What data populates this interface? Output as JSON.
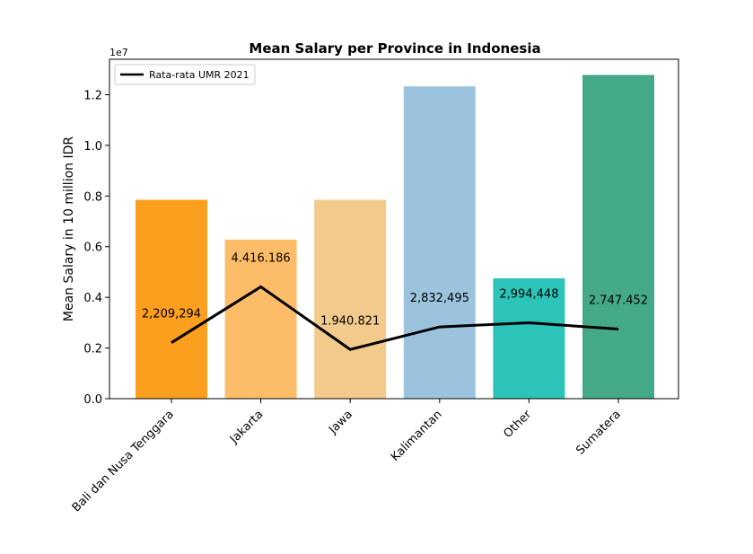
{
  "chart_data": {
    "type": "bar",
    "title": "Mean Salary per Province in Indonesia",
    "xlabel": "",
    "ylabel": "Mean Salary in 10 million IDR",
    "y_offset_text": "1e7",
    "ylim": [
      0,
      13400000
    ],
    "yticks": [
      0,
      2000000,
      4000000,
      6000000,
      8000000,
      10000000,
      12000000
    ],
    "ytick_labels": [
      "0.0",
      "0.2",
      "0.4",
      "0.6",
      "0.8",
      "1.0",
      "1.2"
    ],
    "categories": [
      "Bali dan Nusa Tenggara",
      "Jakarta",
      "Jawa",
      "Kalimantan",
      "Other",
      "Sumatera"
    ],
    "bar_values": [
      7850000,
      6280000,
      7850000,
      12330000,
      4750000,
      12780000
    ],
    "bar_colors": [
      "#fc9e1e",
      "#fdbc67",
      "#f2ca8c",
      "#9cc3dd",
      "#2cc4b8",
      "#43a989"
    ],
    "line_series": {
      "name": "Rata-rata UMR 2021",
      "values": [
        2209294,
        4416186,
        1940821,
        2832495,
        2994448,
        2747452
      ],
      "labels": [
        "2,209,294",
        "4.416.186",
        "1.940.821",
        "2,832,495",
        "2,994,448",
        "2.747.452"
      ],
      "color": "#000000"
    },
    "legend_position": "upper-left",
    "grid": false
  }
}
